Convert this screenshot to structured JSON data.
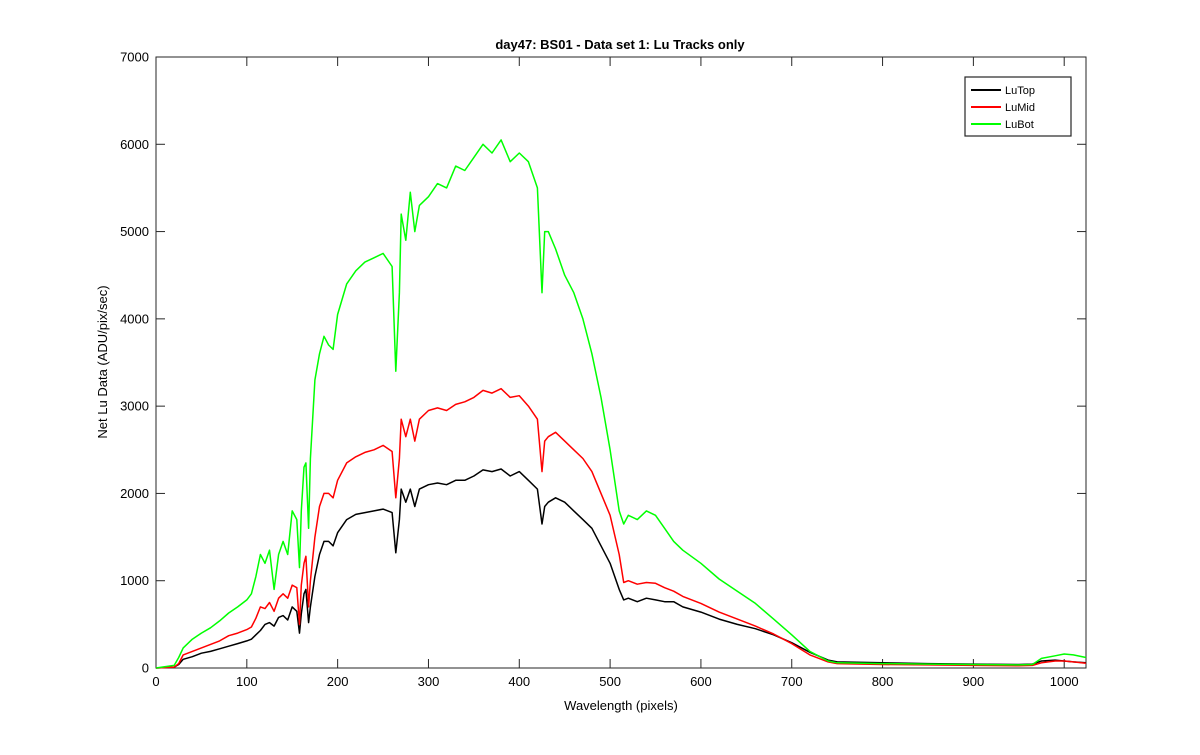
{
  "chart_data": {
    "type": "line",
    "title": "day47: BS01 - Data set 1: Lu Tracks only",
    "xlabel": "Wavelength (pixels)",
    "ylabel": "Net Lu Data (ADU/pix/sec)",
    "xlim": [
      0,
      1024
    ],
    "ylim": [
      0,
      7000
    ],
    "xticks": [
      0,
      100,
      200,
      300,
      400,
      500,
      600,
      700,
      800,
      900,
      1000
    ],
    "yticks": [
      0,
      1000,
      2000,
      3000,
      4000,
      5000,
      6000,
      7000
    ],
    "grid": false,
    "legend_position": "top-right",
    "series": [
      {
        "name": "LuTop",
        "color": "#000000",
        "x": [
          0,
          20,
          25,
          30,
          40,
          50,
          60,
          70,
          80,
          90,
          100,
          105,
          110,
          115,
          120,
          125,
          130,
          135,
          140,
          145,
          150,
          155,
          158,
          160,
          163,
          165,
          168,
          170,
          175,
          180,
          185,
          190,
          195,
          200,
          210,
          220,
          230,
          240,
          250,
          260,
          264,
          268,
          270,
          275,
          280,
          285,
          290,
          300,
          310,
          320,
          330,
          340,
          350,
          360,
          370,
          380,
          390,
          400,
          410,
          420,
          425,
          428,
          432,
          440,
          450,
          460,
          470,
          480,
          490,
          500,
          510,
          515,
          520,
          530,
          540,
          550,
          560,
          570,
          580,
          600,
          620,
          640,
          660,
          680,
          700,
          720,
          740,
          750,
          800,
          850,
          900,
          950,
          965,
          975,
          990,
          1000,
          1010,
          1024
        ],
        "y": [
          0,
          10,
          40,
          100,
          130,
          170,
          190,
          220,
          250,
          280,
          310,
          330,
          380,
          430,
          500,
          520,
          480,
          580,
          600,
          550,
          700,
          650,
          400,
          620,
          850,
          900,
          520,
          700,
          1050,
          1300,
          1450,
          1450,
          1400,
          1550,
          1700,
          1760,
          1780,
          1800,
          1820,
          1780,
          1320,
          1700,
          2050,
          1900,
          2050,
          1850,
          2050,
          2100,
          2120,
          2100,
          2150,
          2150,
          2200,
          2270,
          2250,
          2280,
          2200,
          2250,
          2150,
          2050,
          1650,
          1850,
          1900,
          1950,
          1900,
          1800,
          1700,
          1600,
          1400,
          1200,
          900,
          780,
          800,
          760,
          800,
          780,
          760,
          760,
          700,
          640,
          560,
          500,
          450,
          380,
          290,
          180,
          90,
          70,
          60,
          50,
          45,
          40,
          45,
          80,
          90,
          80,
          70,
          60
        ]
      },
      {
        "name": "LuMid",
        "color": "#ff0000",
        "x": [
          0,
          20,
          25,
          30,
          40,
          50,
          60,
          70,
          80,
          90,
          100,
          105,
          110,
          115,
          120,
          125,
          130,
          135,
          140,
          145,
          150,
          155,
          158,
          160,
          163,
          165,
          168,
          170,
          175,
          180,
          185,
          190,
          195,
          200,
          210,
          220,
          230,
          240,
          250,
          260,
          264,
          268,
          270,
          275,
          280,
          285,
          290,
          300,
          310,
          320,
          330,
          340,
          350,
          360,
          370,
          380,
          390,
          400,
          410,
          420,
          425,
          428,
          432,
          440,
          450,
          460,
          470,
          480,
          490,
          500,
          510,
          515,
          520,
          530,
          540,
          550,
          560,
          570,
          580,
          600,
          620,
          640,
          660,
          680,
          700,
          720,
          740,
          750,
          800,
          850,
          900,
          950,
          965,
          975,
          990,
          1000,
          1010,
          1024
        ],
        "y": [
          0,
          10,
          50,
          150,
          190,
          230,
          270,
          310,
          370,
          400,
          440,
          470,
          570,
          700,
          680,
          750,
          650,
          800,
          850,
          800,
          950,
          920,
          500,
          950,
          1200,
          1280,
          700,
          1000,
          1500,
          1850,
          2000,
          2000,
          1950,
          2150,
          2350,
          2420,
          2470,
          2500,
          2550,
          2480,
          1950,
          2400,
          2850,
          2650,
          2850,
          2600,
          2850,
          2950,
          2980,
          2950,
          3020,
          3050,
          3100,
          3180,
          3150,
          3200,
          3100,
          3120,
          3000,
          2850,
          2250,
          2600,
          2650,
          2700,
          2600,
          2500,
          2400,
          2250,
          2000,
          1750,
          1300,
          980,
          1000,
          960,
          980,
          970,
          920,
          880,
          820,
          740,
          640,
          560,
          480,
          390,
          280,
          150,
          70,
          50,
          40,
          35,
          30,
          25,
          30,
          60,
          80,
          80,
          70,
          55
        ]
      },
      {
        "name": "LuBot",
        "color": "#00ff00",
        "x": [
          0,
          20,
          25,
          30,
          40,
          50,
          60,
          70,
          80,
          90,
          100,
          105,
          110,
          115,
          120,
          125,
          130,
          135,
          140,
          145,
          150,
          155,
          158,
          160,
          163,
          165,
          168,
          170,
          175,
          180,
          185,
          190,
          195,
          200,
          210,
          220,
          230,
          240,
          250,
          260,
          264,
          268,
          270,
          275,
          280,
          285,
          290,
          300,
          310,
          320,
          330,
          340,
          350,
          360,
          370,
          380,
          390,
          400,
          410,
          420,
          425,
          428,
          432,
          440,
          450,
          460,
          470,
          480,
          490,
          500,
          510,
          515,
          520,
          530,
          540,
          550,
          560,
          570,
          580,
          600,
          620,
          640,
          660,
          680,
          700,
          720,
          740,
          750,
          800,
          850,
          900,
          950,
          965,
          975,
          990,
          1000,
          1010,
          1024
        ],
        "y": [
          0,
          30,
          120,
          230,
          330,
          400,
          460,
          540,
          630,
          700,
          780,
          850,
          1050,
          1300,
          1200,
          1350,
          900,
          1300,
          1450,
          1300,
          1800,
          1700,
          1150,
          1800,
          2300,
          2350,
          1600,
          2400,
          3300,
          3600,
          3800,
          3700,
          3650,
          4050,
          4400,
          4550,
          4650,
          4700,
          4750,
          4600,
          3400,
          4300,
          5200,
          4900,
          5450,
          5000,
          5300,
          5400,
          5550,
          5500,
          5750,
          5700,
          5850,
          6000,
          5900,
          6050,
          5800,
          5900,
          5800,
          5500,
          4300,
          5000,
          5000,
          4800,
          4500,
          4300,
          4000,
          3600,
          3100,
          2500,
          1800,
          1650,
          1750,
          1700,
          1800,
          1750,
          1600,
          1450,
          1350,
          1200,
          1020,
          880,
          740,
          560,
          380,
          190,
          80,
          60,
          50,
          45,
          40,
          35,
          40,
          110,
          140,
          160,
          150,
          120
        ]
      }
    ]
  }
}
